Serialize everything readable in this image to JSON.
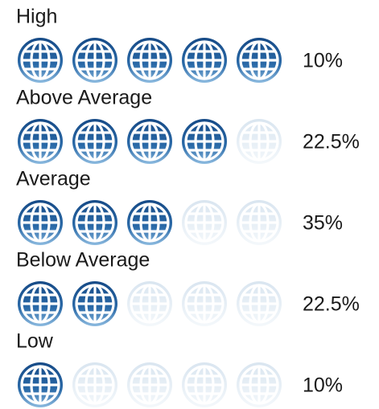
{
  "rows": [
    {
      "label": "High",
      "rating": 5,
      "max": 5,
      "percent": "10%"
    },
    {
      "label": "Above Average",
      "rating": 4,
      "max": 5,
      "percent": "22.5%"
    },
    {
      "label": "Average",
      "rating": 3,
      "max": 5,
      "percent": "35%"
    },
    {
      "label": "Below Average",
      "rating": 2,
      "max": 5,
      "percent": "22.5%"
    },
    {
      "label": "Low",
      "rating": 1,
      "max": 5,
      "percent": "10%"
    }
  ]
}
